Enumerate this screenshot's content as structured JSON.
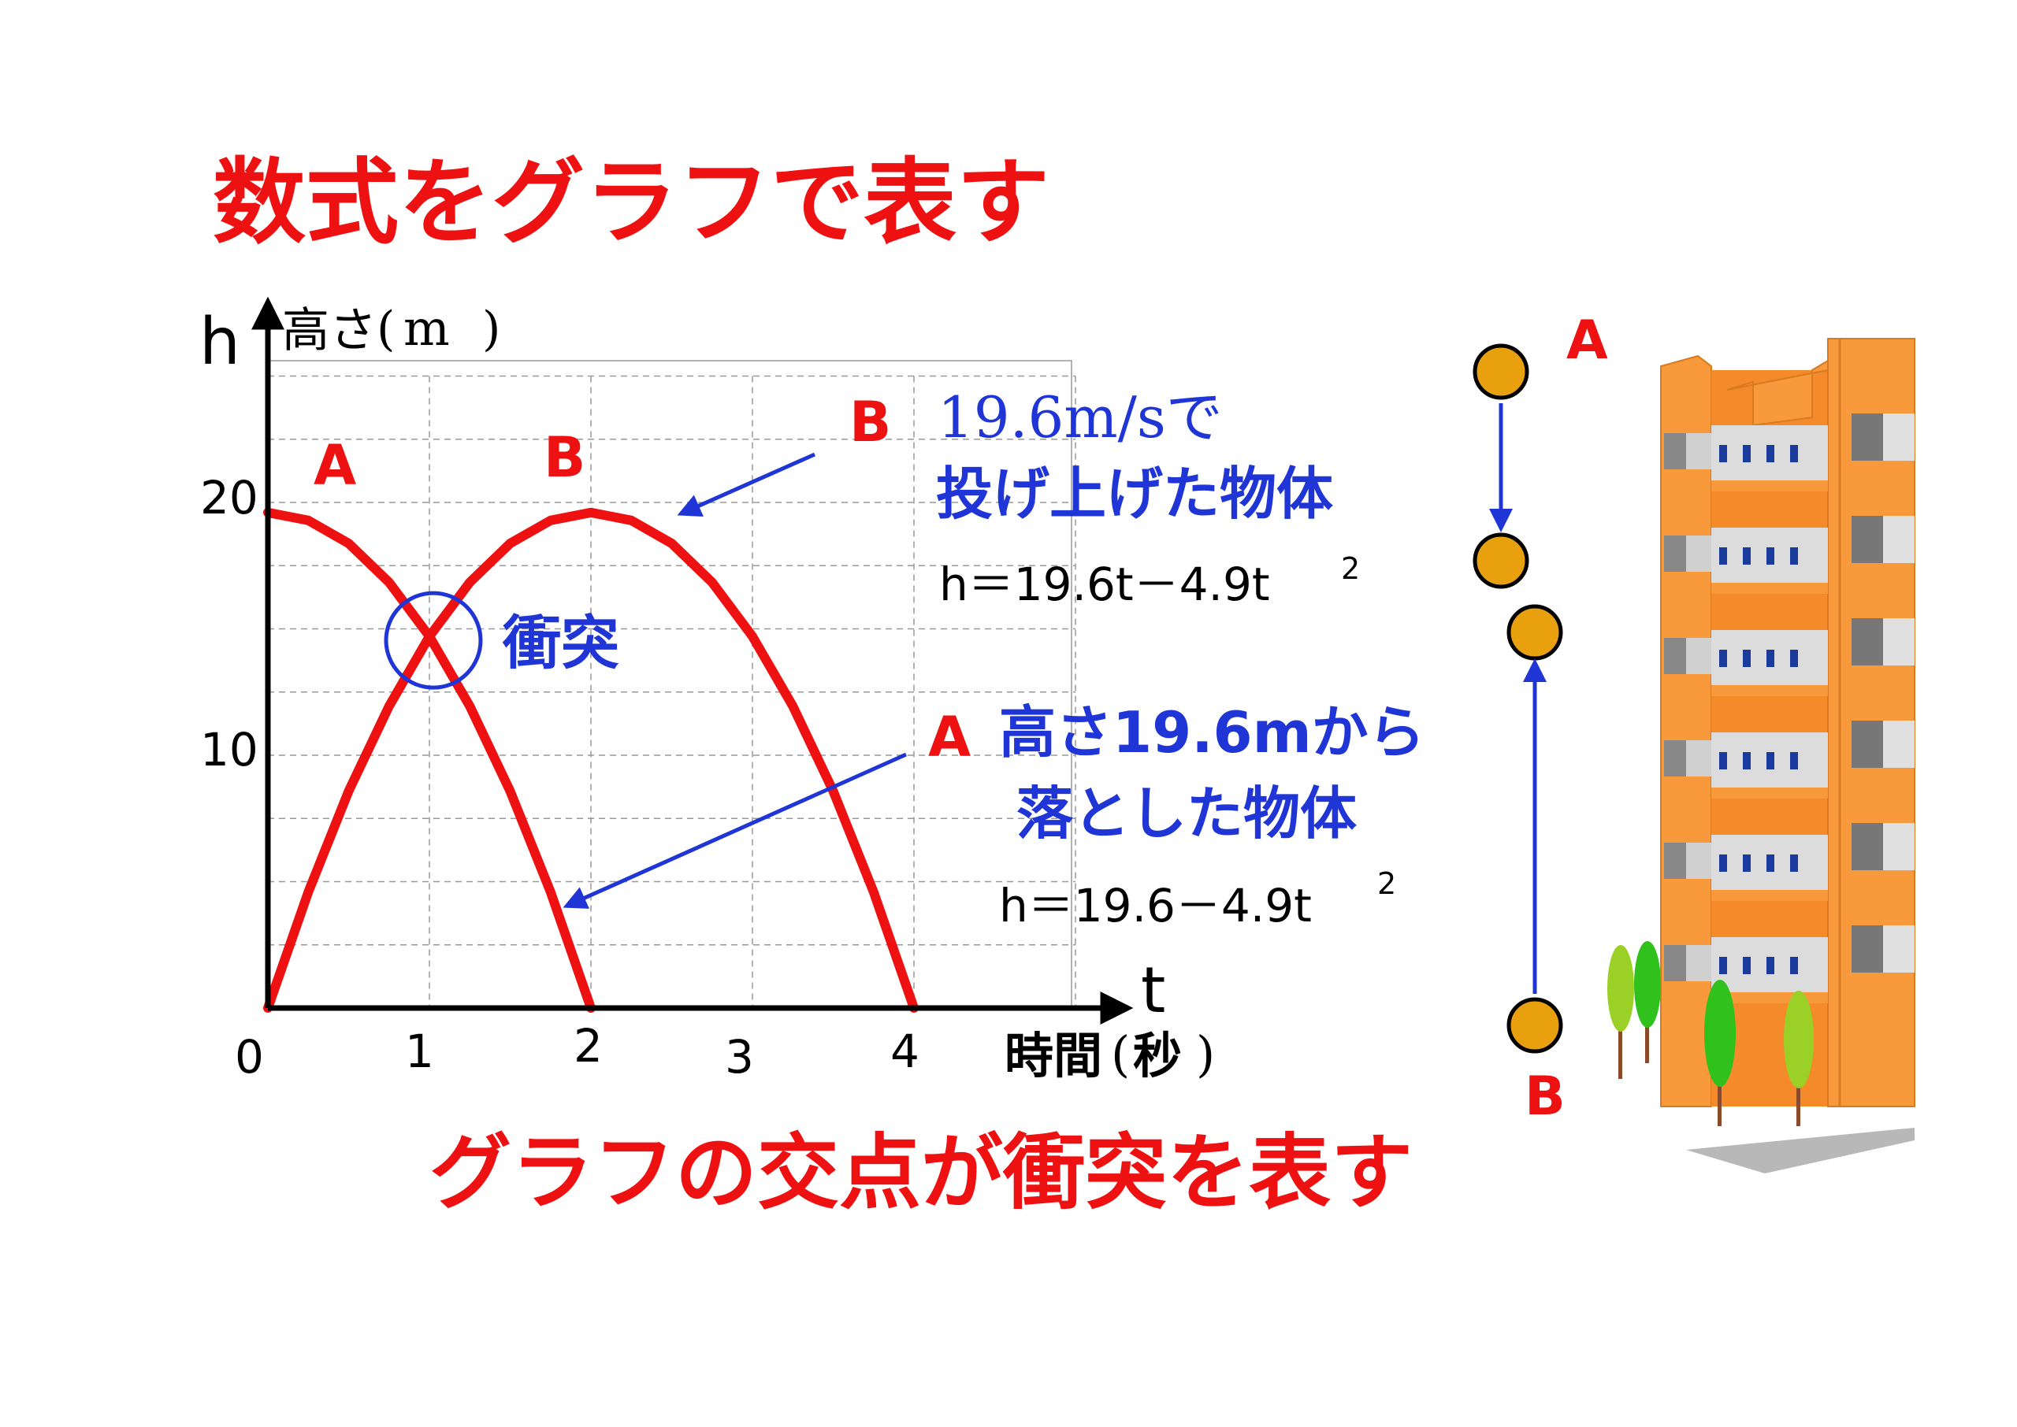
{
  "title": "数式をグラフで表す",
  "footer": "グラフの交点が衝突を表す",
  "chart_data": {
    "type": "line",
    "y_axis_symbol": "h",
    "y_axis_label_text": "高さ",
    "y_axis_unit": "m",
    "x_axis_symbol": "t",
    "x_axis_label_text": "時間",
    "x_axis_unit": "秒",
    "x_ticks": [
      "0",
      "1",
      "2",
      "3",
      "4"
    ],
    "y_ticks": [
      "10",
      "20"
    ],
    "xlim": [
      0,
      5
    ],
    "ylim": [
      0,
      25
    ],
    "grid": true,
    "series": [
      {
        "name": "A",
        "formula": "h = 19.6 - 4.9t²",
        "color": "#ee1111",
        "x": [
          0,
          0.25,
          0.5,
          0.75,
          1.0,
          1.25,
          1.5,
          1.75,
          2.0
        ],
        "y": [
          19.6,
          19.29,
          18.38,
          16.84,
          14.7,
          11.94,
          8.58,
          4.59,
          0
        ]
      },
      {
        "name": "B",
        "formula": "h = 19.6t - 4.9t²",
        "color": "#ee1111",
        "x": [
          0,
          0.25,
          0.5,
          0.75,
          1.0,
          1.25,
          1.5,
          1.75,
          2.0,
          2.25,
          2.5,
          2.75,
          3.0,
          3.25,
          3.5,
          3.75,
          4.0
        ],
        "y": [
          0,
          4.59,
          8.58,
          11.94,
          14.7,
          16.84,
          18.38,
          19.29,
          19.6,
          19.29,
          18.38,
          16.84,
          14.7,
          11.94,
          8.58,
          4.59,
          0
        ]
      }
    ],
    "collision": {
      "label": "衝突",
      "x": 1,
      "y": 14.7,
      "color": "#1f35d6"
    },
    "annotations": {
      "B_desc_line1": "19.6m/sで",
      "B_desc_line2": "投げ上げた物体",
      "B_formula": "h＝19.6t－4.9t",
      "A_desc_line1": "高さ19.6mから",
      "A_desc_line2": "落とした物体",
      "A_formula": "h＝19.6－4.9t",
      "exponent": "2",
      "annotation_color": "#1f35d6"
    }
  },
  "illustration": {
    "label_top": "A",
    "label_bottom": "B",
    "ball_color": "#e8a00e",
    "building_color": "#f89a3c",
    "arrow_color": "#1f35d6"
  }
}
